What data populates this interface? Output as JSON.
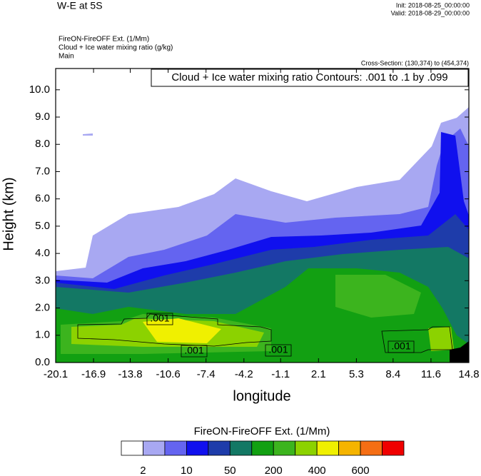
{
  "chart_data": {
    "type": "contour",
    "title": "W-E at 5S",
    "init": "Init: 2018-08-25_00:00:00",
    "valid": "Valid: 2018-08-29_00:00:00",
    "field_names": [
      "FireON-FireOFF Ext.   (1/Mm)",
      "Cloud + Ice water mixing ratio   (g/kg)",
      "Main"
    ],
    "cross_section": "Cross-Section: (130,374) to (454,374)",
    "contour_info": "Cloud + Ice water mixing ratio Contours: .001 to .1 by .099",
    "contour_labels": [
      ".001",
      ".001",
      ".001",
      ".001"
    ],
    "x_label": "longitude",
    "y_label": "Height (km)",
    "xlim": [
      -20.1,
      14.8
    ],
    "xticks": [
      -20.1,
      -16.9,
      -13.8,
      -10.6,
      -7.4,
      -4.2,
      -1.1,
      2.1,
      5.3,
      8.4,
      11.6,
      14.8
    ],
    "ylim": [
      0,
      10.78
    ],
    "yticks": [
      {
        "value": 0,
        "label": "0.0"
      },
      {
        "value": 1,
        "label": "1.0"
      },
      {
        "value": 2,
        "label": "2.0"
      },
      {
        "value": 3,
        "label": "3.0"
      },
      {
        "value": 4,
        "label": "4.0"
      },
      {
        "value": 5,
        "label": "5.0"
      },
      {
        "value": 6,
        "label": "6.0"
      },
      {
        "value": 7,
        "label": "7.0"
      },
      {
        "value": 8,
        "label": "8.0"
      },
      {
        "value": 9,
        "label": "9.0"
      },
      {
        "value": 10,
        "label": "10.0"
      }
    ],
    "colorbar": {
      "title": "FireON-FireOFF Ext.  (1/Mm)",
      "labels": [
        2,
        10,
        50,
        200,
        400,
        600
      ],
      "colors": [
        "#ffffff",
        "#a8a8f2",
        "#6464f0",
        "#1010ee",
        "#1e3caa",
        "#137864",
        "#12a012",
        "#3cb41e",
        "#8cd200",
        "#f0f000",
        "#f5b400",
        "#f56e14",
        "#f00000"
      ]
    }
  }
}
